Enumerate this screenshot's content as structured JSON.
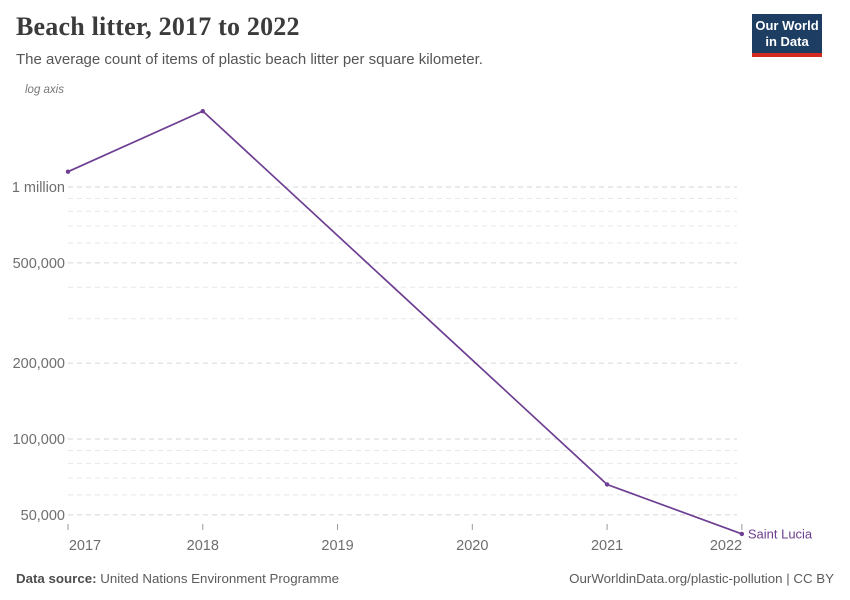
{
  "header": {
    "title": "Beach litter, 2017 to 2022",
    "subtitle": "The average count of items of plastic beach litter per square kilometer.",
    "logo": {
      "line1": "Our World",
      "line2": "in Data"
    }
  },
  "chart": {
    "log_axis_label": "log axis",
    "entity_label": "Saint Lucia"
  },
  "chart_data": {
    "type": "line",
    "title": "Beach litter, 2017 to 2022",
    "subtitle": "The average count of items of plastic beach litter per square kilometer.",
    "x_scale": "linear-years",
    "y_scale": "log",
    "x": [
      2017,
      2018,
      2021,
      2022
    ],
    "series": [
      {
        "name": "Saint Lucia",
        "values": [
          1150000,
          2000000,
          66000,
          42000
        ]
      }
    ],
    "x_axis": {
      "ticks": [
        2017,
        2018,
        2019,
        2020,
        2021,
        2022
      ]
    },
    "y_axis": {
      "ticks": [
        {
          "value": 50000,
          "label": "50,000"
        },
        {
          "value": 100000,
          "label": "100,000"
        },
        {
          "value": 200000,
          "label": "200,000"
        },
        {
          "value": 500000,
          "label": "500,000"
        },
        {
          "value": 1000000,
          "label": "1 million"
        }
      ],
      "minor_gridlines": [
        60000,
        70000,
        80000,
        90000,
        300000,
        400000,
        600000,
        700000,
        800000,
        900000
      ],
      "range": [
        42000,
        2000000
      ]
    },
    "grid": "dashed-horizontal",
    "legend_position": "end-of-line-label",
    "ylabel": "",
    "xlabel": ""
  },
  "footer": {
    "source_label": "Data source:",
    "source_value": "United Nations Environment Programme",
    "url_text": "OurWorldinData.org/plastic-pollution | CC BY"
  },
  "colors": {
    "line": "#6d3e91",
    "entity_label": "#6d3e91",
    "grid_major": "#d6d6d6",
    "grid_minor": "#e8e8e8",
    "axis_text": "#6e6e6e",
    "tick_mark": "#9a9a9a",
    "title_text": "#3b3b3b",
    "logo_bg": "#1d3d63",
    "logo_accent": "#d42b21"
  }
}
